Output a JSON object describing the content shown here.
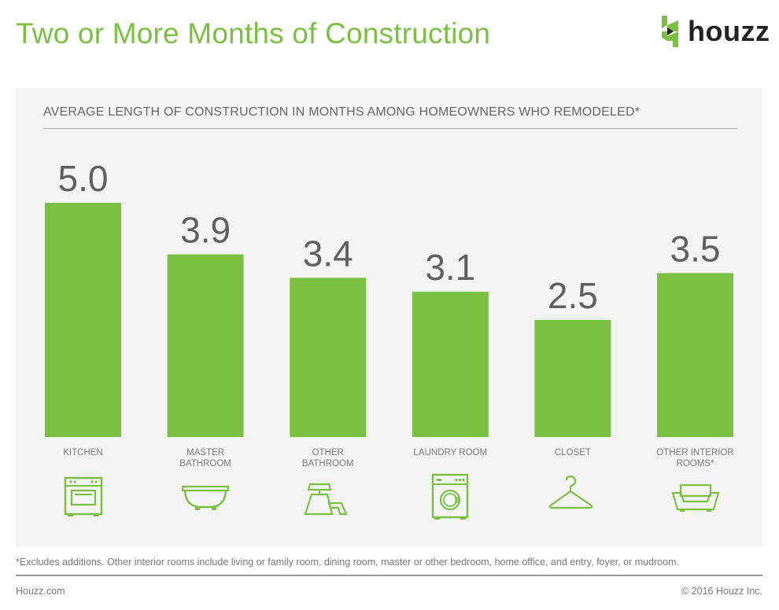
{
  "header": {
    "title": "Two or More Months of Construction",
    "logo_text": "houzz"
  },
  "colors": {
    "accent": "#7bc043",
    "value_text": "#5f5f5f",
    "panel": "#f4f4f4"
  },
  "chart_data": {
    "type": "bar",
    "title": "AVERAGE LENGTH OF CONSTRUCTION IN MONTHS AMONG HOMEOWNERS WHO REMODELED*",
    "xlabel": "",
    "ylabel": "",
    "ylim": [
      0,
      5.0
    ],
    "grid": false,
    "categories": [
      "KITCHEN",
      "MASTER BATHROOM",
      "OTHER BATHROOM",
      "LAUNDRY ROOM",
      "CLOSET",
      "OTHER INTERIOR ROOMS*"
    ],
    "category_lines": [
      [
        "KITCHEN"
      ],
      [
        "MASTER",
        "BATHROOM"
      ],
      [
        "OTHER",
        "BATHROOM"
      ],
      [
        "LAUNDRY ROOM"
      ],
      [
        "CLOSET"
      ],
      [
        "OTHER INTERIOR",
        "ROOMS*"
      ]
    ],
    "values": [
      5.0,
      3.9,
      3.4,
      3.1,
      2.5,
      3.5
    ],
    "value_labels": [
      "5.0",
      "3.9",
      "3.4",
      "3.1",
      "2.5",
      "3.5"
    ],
    "icons": [
      "oven-icon",
      "bathtub-icon",
      "sink-faucet-icon",
      "washing-machine-icon",
      "hanger-icon",
      "sofa-icon"
    ]
  },
  "footnote": "*Excludes additions. Other interior rooms include living or family room, dining room, master or other bedroom, home office, and entry, foyer, or mudroom.",
  "footer": {
    "left": "Houzz.com",
    "right": "© 2016 Houzz Inc."
  }
}
